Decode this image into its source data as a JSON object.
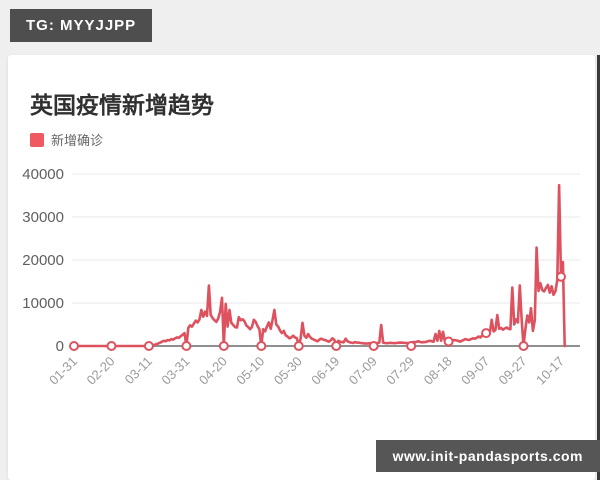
{
  "badge": {
    "text": "TG: MYYJJPP"
  },
  "watermark": {
    "text": "www.init-pandasports.com"
  },
  "chart": {
    "title": "英国疫情新增趋势",
    "legend": [
      {
        "label": "新增确诊",
        "color": "#ee5a5f"
      }
    ]
  },
  "chart_data": {
    "type": "line",
    "title": "英国疫情新增趋势",
    "series_name": "新增确诊",
    "color": "#dd525e",
    "xlabel": "",
    "ylabel": "",
    "ylim": [
      0,
      40000
    ],
    "y_ticks": [
      0,
      10000,
      20000,
      30000,
      40000
    ],
    "grid": true,
    "legend_position": "top-left",
    "x_start_date": "01-31",
    "x_step_days": 1,
    "x_tick_every_n_points": 20,
    "x_tick_labels": [
      "01-31",
      "02-20",
      "03-11",
      "03-31",
      "04-20",
      "05-10",
      "05-30",
      "06-19",
      "07-09",
      "07-29",
      "08-18",
      "09-07",
      "09-27",
      "10-17"
    ],
    "marker_values_at_ticks": [
      0,
      0,
      0,
      0,
      0,
      0,
      0,
      0,
      0,
      0,
      1050,
      3000,
      0,
      16100
    ],
    "values": [
      0,
      0,
      0,
      0,
      0,
      0,
      0,
      0,
      0,
      0,
      0,
      0,
      0,
      0,
      0,
      0,
      0,
      0,
      0,
      0,
      0,
      0,
      0,
      0,
      0,
      0,
      0,
      0,
      0,
      0,
      0,
      0,
      0,
      0,
      0,
      0,
      0,
      0,
      0,
      0,
      0,
      60,
      150,
      250,
      400,
      600,
      800,
      1000,
      1200,
      1100,
      1400,
      1300,
      1600,
      1500,
      1800,
      2000,
      1900,
      2300,
      2600,
      3000,
      0,
      4200,
      4800,
      4500,
      5200,
      5900,
      5500,
      6200,
      8400,
      6800,
      8000,
      7000,
      14050,
      7200,
      6500,
      6000,
      5600,
      6400,
      8000,
      11200,
      0,
      9800,
      4500,
      8400,
      5400,
      4900,
      4400,
      4300,
      6700,
      6000,
      6200,
      5800,
      4800,
      4400,
      3900,
      4400,
      6100,
      5600,
      4600,
      3900,
      0,
      3900,
      3400,
      4500,
      5500,
      4000,
      6000,
      8400,
      5000,
      4500,
      3600,
      3000,
      3500,
      2500,
      2200,
      1800,
      2000,
      2400,
      2000,
      1800,
      0,
      1700,
      5400,
      2400,
      1900,
      2800,
      2100,
      1700,
      1500,
      1300,
      1100,
      1500,
      1700,
      1500,
      1400,
      1200,
      1000,
      1300,
      1800,
      1400,
      0,
      1200,
      1000,
      900,
      850,
      1700,
      1100,
      900,
      800,
      700,
      900,
      800,
      800,
      700,
      650,
      600,
      550,
      600,
      650,
      600,
      0,
      650,
      700,
      800,
      4900,
      800,
      700,
      650,
      700,
      750,
      700,
      650,
      700,
      750,
      800,
      770,
      750,
      700,
      680,
      700,
      0,
      900,
      880,
      1000,
      1100,
      900,
      850,
      900,
      950,
      1100,
      1200,
      1100,
      1000,
      2800,
      1200,
      3500,
      1200,
      3300,
      1100,
      1050,
      1050,
      1100,
      1200,
      1400,
      1300,
      1200,
      1000,
      1200,
      1400,
      1600,
      1500,
      1400,
      1600,
      1800,
      1700,
      1900,
      2200,
      2000,
      2500,
      2900,
      3000,
      2700,
      3000,
      6100,
      3400,
      3700,
      7200,
      4000,
      4200,
      3800,
      4100,
      4300,
      4000,
      3900,
      13600,
      5000,
      6200,
      5500,
      14100,
      6000,
      0,
      4000,
      7100,
      5500,
      8800,
      3500,
      6000,
      22900,
      12800,
      14600,
      13000,
      12700,
      13500,
      14200,
      12400,
      13900,
      11900,
      12700,
      15300,
      37400,
      16100,
      19500,
      0
    ]
  }
}
